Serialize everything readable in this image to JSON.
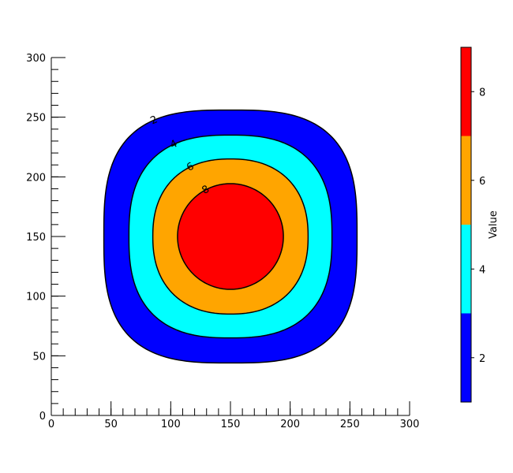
{
  "chart_data": {
    "type": "contour",
    "center": [
      150,
      150
    ],
    "contours": [
      {
        "level": 2,
        "half_width": 106,
        "shape_exponent": 3.0,
        "color": "#0000ff"
      },
      {
        "level": 4,
        "half_width": 85,
        "shape_exponent": 2.6,
        "color": "#00ffff"
      },
      {
        "level": 6,
        "half_width": 65,
        "shape_exponent": 2.3,
        "color": "#ffa500"
      },
      {
        "level": 8,
        "half_width": 44.3,
        "shape_exponent": 2.0,
        "color": "#ff0000"
      }
    ],
    "xlim": [
      0,
      300
    ],
    "ylim": [
      0,
      300
    ],
    "xticks": [
      0,
      50,
      100,
      150,
      200,
      250,
      300
    ],
    "yticks": [
      0,
      50,
      100,
      150,
      200,
      250,
      300
    ],
    "minor_step": 10,
    "colorbar": {
      "label": "Value",
      "bounds": [
        1,
        3,
        5,
        7,
        9
      ],
      "colors": [
        "#0000ff",
        "#00ffff",
        "#ffa500",
        "#ff0000"
      ],
      "ticks": [
        2,
        4,
        6,
        8
      ]
    }
  }
}
